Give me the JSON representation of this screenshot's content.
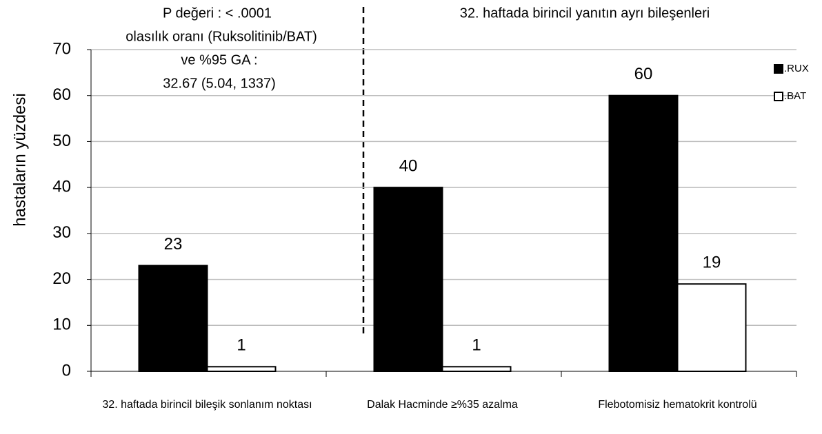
{
  "chart_data": {
    "type": "bar",
    "y_label": "hastaların yüzdesi",
    "annotations": [
      "P değeri : < .0001",
      "olasılık oranı (Ruksolitinib/BAT)",
      "ve %95 GA :",
      "32.67 (5.04, 1337)",
      "32. haftada birincil yanıtın ayrı bileşenleri"
    ],
    "categories": [
      "32. haftada birincil bileşik sonlanım noktası",
      "Dalak Hacminde ≥%35 azalma",
      "Flebotomisiz  hematokrit  kontrolü"
    ],
    "series": [
      {
        "name": ".RUX",
        "color": "#000000",
        "values": [
          23,
          40,
          60
        ]
      },
      {
        "name": ".BAT",
        "color": "#ffffff",
        "values": [
          1,
          1,
          19
        ]
      }
    ],
    "ylim": [
      0,
      70
    ],
    "yticks": [
      0,
      10,
      20,
      30,
      40,
      50,
      60,
      70
    ],
    "grid": true,
    "legend": "right"
  }
}
